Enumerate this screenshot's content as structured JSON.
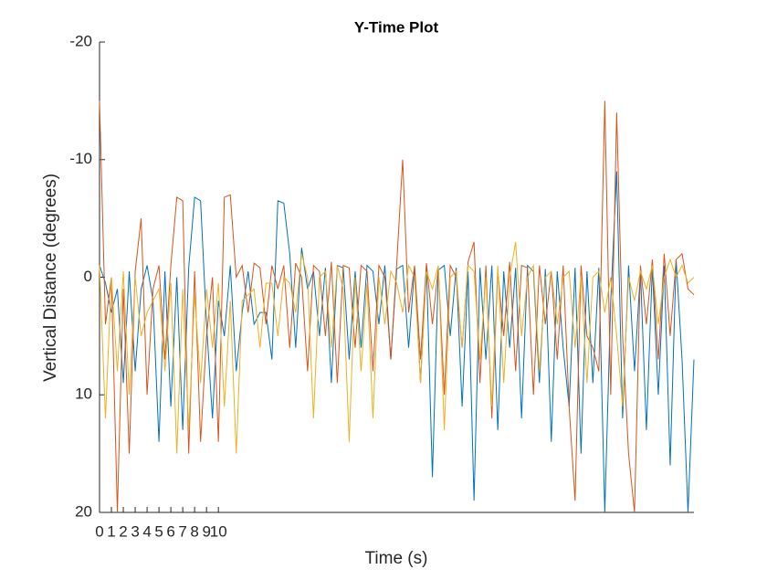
{
  "chart_data": {
    "type": "line",
    "title": "Y-Time Plot",
    "xlabel": "Time (s)",
    "ylabel": "Vertical Distance (degrees)",
    "xlim": [
      0,
      50
    ],
    "xticks": [
      0,
      1,
      2,
      3,
      4,
      5,
      6,
      7,
      8,
      9,
      10
    ],
    "ylim": [
      -20,
      20
    ],
    "yticks": [
      -20,
      -10,
      0,
      10,
      20
    ],
    "y_reversed": true,
    "x": [
      0,
      0.5,
      1,
      1.5,
      2,
      2.5,
      3,
      3.5,
      4,
      4.5,
      5,
      5.5,
      6,
      6.5,
      7,
      7.5,
      8,
      8.5,
      9,
      9.5,
      10,
      10.5,
      11,
      11.5,
      12,
      12.5,
      13,
      13.5,
      14,
      14.5,
      15,
      15.5,
      16,
      16.5,
      17,
      17.5,
      18,
      18.5,
      19,
      19.5,
      20,
      20.5,
      21,
      21.5,
      22,
      22.5,
      23,
      23.5,
      24,
      24.5,
      25,
      25.5,
      26,
      26.5,
      27,
      27.5,
      28,
      28.5,
      29,
      29.5,
      30,
      30.5,
      31,
      31.5,
      32,
      32.5,
      33,
      33.5,
      34,
      34.5,
      35,
      35.5,
      36,
      36.5,
      37,
      37.5,
      38,
      38.5,
      39,
      39.5,
      40,
      40.5,
      41,
      41.5,
      42,
      42.5,
      43,
      43.5,
      44,
      44.5,
      45,
      45.5,
      46,
      46.5,
      47,
      47.5,
      48,
      48.5,
      49,
      49.5,
      50
    ],
    "series": [
      {
        "color": "#0072BD",
        "values": [
          -1,
          0.5,
          3,
          1,
          9,
          -0.5,
          8,
          1,
          -1,
          2,
          14,
          -0.5,
          11,
          0,
          13,
          -0.8,
          -6.8,
          -6.5,
          4,
          12,
          2,
          5,
          -1,
          8,
          3,
          -0.5,
          4,
          3,
          3,
          7,
          -6.5,
          -6.3,
          -2,
          6,
          -2.5,
          1,
          -0.5,
          5,
          -0.8,
          9,
          -1,
          -0.8,
          7,
          -0.5,
          6,
          -1,
          -0.5,
          4,
          -1,
          7,
          -0.7,
          -1,
          6,
          -0.8,
          9,
          -1,
          17,
          -0.6,
          -1,
          5,
          -0.8,
          11,
          -0.5,
          19,
          -0.8,
          7,
          -1,
          13,
          -0.5,
          6,
          -0.8,
          12,
          -1,
          -0.5,
          9,
          -0.7,
          14,
          -0.5,
          6,
          11,
          -0.8,
          15,
          -0.5,
          9,
          -0.8,
          20,
          2,
          -9,
          12,
          -1,
          8,
          -0.5,
          13,
          -0.8,
          10,
          -1,
          16,
          -1.5,
          7,
          20,
          7
        ]
      },
      {
        "color": "#D95319",
        "values": [
          -15,
          4,
          0,
          20,
          1,
          15,
          -0.5,
          -5,
          10,
          1,
          -1,
          7,
          -1,
          -6.8,
          -6.5,
          15,
          -0.5,
          14,
          5,
          0,
          14,
          -6.8,
          -7,
          0,
          -1,
          3,
          -1.2,
          -0.8,
          4,
          -1,
          1,
          -1,
          6,
          -1.2,
          0,
          8,
          -1,
          -0.5,
          5,
          -1.3,
          9,
          -1,
          -0.8,
          6,
          -1,
          -0.5,
          8,
          -1,
          0,
          7,
          -1.2,
          -10,
          3,
          -1,
          7,
          -1.2,
          4,
          -0.8,
          10,
          -1,
          0,
          6,
          -1.3,
          -3,
          9,
          -1,
          12,
          -0.5,
          5,
          -1.3,
          8,
          -1,
          -0.8,
          10,
          -1,
          4,
          -0.5,
          7,
          -1,
          11,
          19,
          -1,
          5,
          6,
          8,
          -15,
          10,
          -14,
          5,
          15,
          20,
          -1,
          4,
          -1.5,
          7,
          -2,
          5,
          -1.5,
          -2,
          1,
          1.5
        ]
      },
      {
        "color": "#EDB120",
        "values": [
          -1,
          12,
          0,
          8,
          -0.5,
          10,
          0,
          5,
          3,
          2,
          1,
          8,
          0.5,
          15,
          1,
          13,
          1.5,
          9,
          1,
          6,
          0.5,
          11,
          2,
          15,
          2,
          1.5,
          1,
          6,
          0.5,
          0.5,
          5,
          0,
          0.5,
          3,
          -2,
          0,
          12,
          0,
          -0.5,
          6,
          -1,
          1,
          14,
          0,
          8,
          0.5,
          12,
          0,
          4,
          -0.5,
          0.5,
          3,
          -1,
          0,
          9,
          -0.5,
          1,
          -1,
          13,
          0,
          -0.5,
          6,
          -1,
          -0.5,
          7,
          0,
          11,
          -1,
          9,
          0,
          -3,
          5,
          0,
          -1,
          8,
          0,
          -0.5,
          4,
          0,
          -0.5,
          6,
          0,
          9,
          0,
          -0.5,
          3,
          0,
          5,
          11,
          0,
          2,
          -0.5,
          1,
          -1,
          4,
          0,
          -1.5,
          0,
          -1,
          0.5,
          0
        ]
      }
    ]
  }
}
